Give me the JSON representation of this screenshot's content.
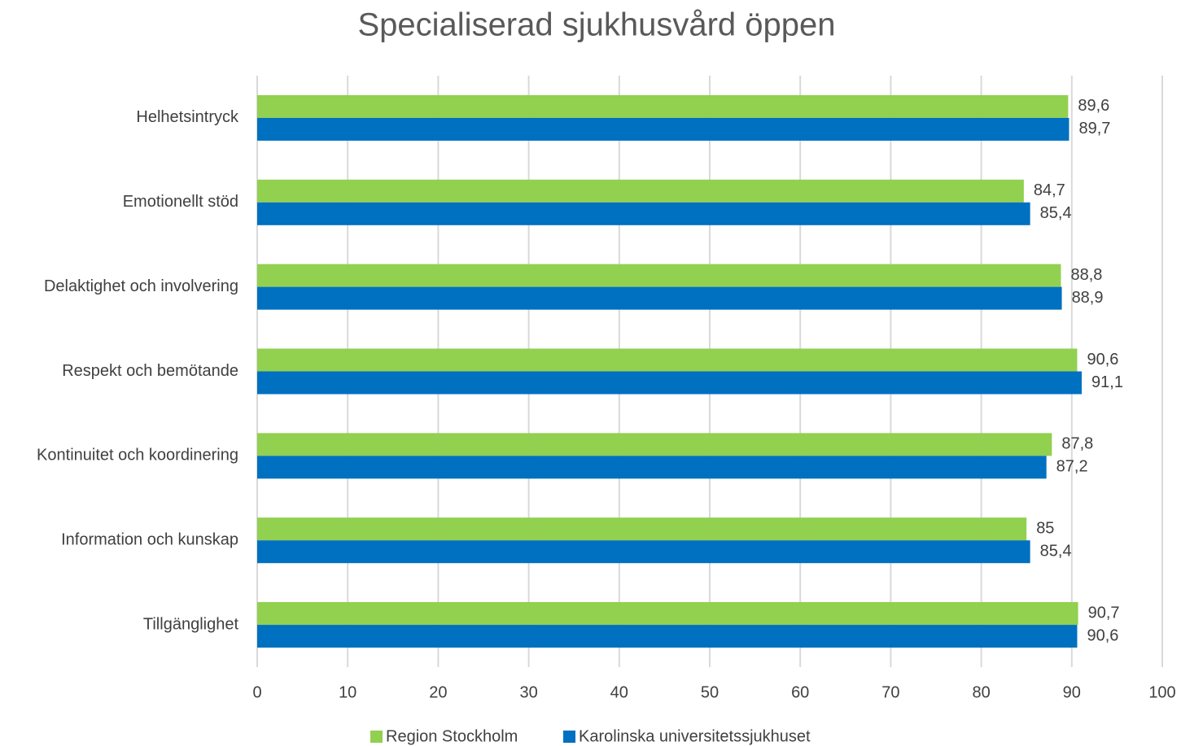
{
  "chart_data": {
    "type": "barh",
    "title": "Specialiserad sjukhusvård öppen",
    "categories": [
      "Helhetsintryck",
      "Emotionellt stöd",
      "Delaktighet och involvering",
      "Respekt och bemötande",
      "Kontinuitet och koordinering",
      "Information och kunskap",
      "Tillgänglighet"
    ],
    "series": [
      {
        "name": "Region Stockholm",
        "color": "#92d050",
        "values": [
          89.6,
          84.7,
          88.8,
          90.6,
          87.8,
          85,
          90.7
        ],
        "value_labels": [
          "89,6",
          "84,7",
          "88,8",
          "90,6",
          "87,8",
          "85",
          "90,7"
        ]
      },
      {
        "name": "Karolinska universitetssjukhuset",
        "color": "#0070c0",
        "values": [
          89.7,
          85.4,
          88.9,
          91.1,
          87.2,
          85.4,
          90.6
        ],
        "value_labels": [
          "89,7",
          "85,4",
          "88,9",
          "91,1",
          "87,2",
          "85,4",
          "90,6"
        ]
      }
    ],
    "xlim": [
      0,
      100
    ],
    "xticks": [
      0,
      10,
      20,
      30,
      40,
      50,
      60,
      70,
      80,
      90,
      100
    ],
    "grid": true,
    "legend": "bottom"
  }
}
